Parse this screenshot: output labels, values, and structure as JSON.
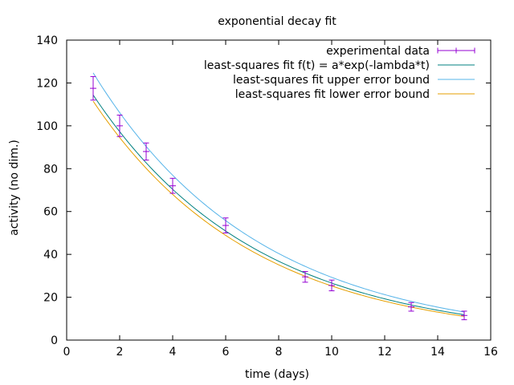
{
  "chart_data": {
    "type": "scatter",
    "title": "exponential decay fit",
    "xlabel": "time (days)",
    "ylabel": "activity (no dim.)",
    "xlim": [
      0,
      16
    ],
    "ylim": [
      0,
      140
    ],
    "xticks": [
      0,
      2,
      4,
      6,
      8,
      10,
      12,
      14,
      16
    ],
    "yticks": [
      0,
      20,
      40,
      60,
      80,
      100,
      120,
      140
    ],
    "grid": false,
    "legend_position": "top-right",
    "series": [
      {
        "name": "experimental data",
        "kind": "errorbars",
        "color": "#9400d3",
        "x": [
          1,
          2,
          3,
          4,
          6,
          9,
          10,
          13,
          15
        ],
        "y": [
          117.5,
          100,
          88,
          72,
          53.5,
          29.5,
          25.5,
          15.5,
          11.5
        ],
        "yerr": [
          5.5,
          5,
          4,
          3.5,
          3.5,
          2.5,
          2.5,
          2,
          2
        ]
      },
      {
        "name": "least-squares fit f(t) = a*exp(-lambda*t)",
        "kind": "line",
        "color": "#008080",
        "a": 134.5,
        "lambda": 0.162
      },
      {
        "name": "least-squares fit upper error bound",
        "kind": "line",
        "color": "#56b4e9",
        "a": 146.5,
        "lambda": 0.161
      },
      {
        "name": "least-squares fit lower error bound",
        "kind": "line",
        "color": "#e69f00",
        "a": 131.5,
        "lambda": 0.165
      }
    ],
    "fit_range": [
      1,
      15
    ]
  }
}
